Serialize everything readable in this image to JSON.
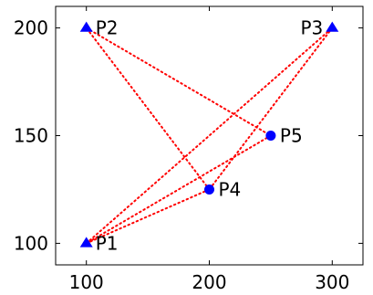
{
  "chart_data": {
    "type": "scatter",
    "title": "",
    "xlabel": "",
    "ylabel": "",
    "xlim": [
      75,
      325
    ],
    "ylim": [
      90,
      210
    ],
    "x_ticks": [
      100,
      200,
      300
    ],
    "y_ticks": [
      100,
      150,
      200
    ],
    "grid": false,
    "points": [
      {
        "label": "P1",
        "x": 100,
        "y": 100,
        "marker": "triangle",
        "label_side": "right"
      },
      {
        "label": "P2",
        "x": 100,
        "y": 200,
        "marker": "triangle",
        "label_side": "right"
      },
      {
        "label": "P3",
        "x": 300,
        "y": 200,
        "marker": "triangle",
        "label_side": "left"
      },
      {
        "label": "P4",
        "x": 200,
        "y": 125,
        "marker": "circle",
        "label_side": "right"
      },
      {
        "label": "P5",
        "x": 250,
        "y": 150,
        "marker": "circle",
        "label_side": "right"
      }
    ],
    "connections": [
      [
        "P1",
        "P4"
      ],
      [
        "P4",
        "P2"
      ],
      [
        "P2",
        "P5"
      ],
      [
        "P5",
        "P1"
      ],
      [
        "P1",
        "P3"
      ],
      [
        "P3",
        "P4"
      ]
    ],
    "colors": {
      "marker": "#0000ff",
      "line": "#ff0000",
      "axis": "#000000"
    },
    "line_style": "dotted"
  }
}
